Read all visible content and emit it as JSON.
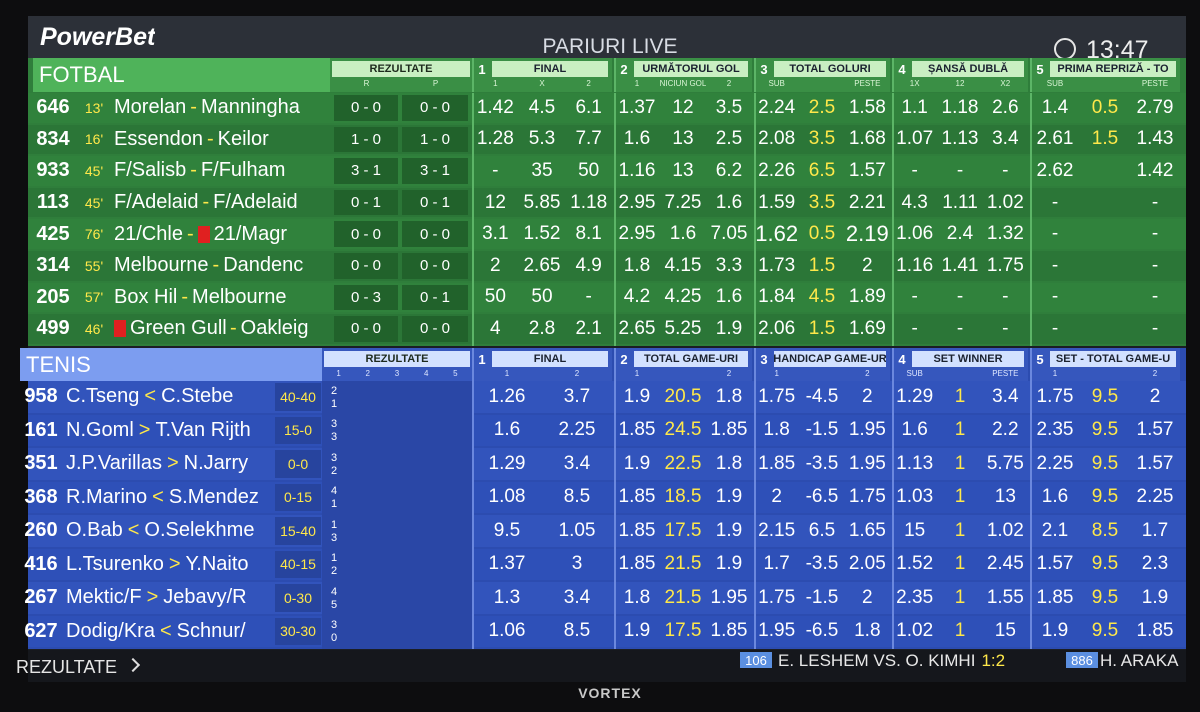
{
  "header": {
    "brand": "PowerBet",
    "title": "PARIURI LIVE",
    "time": "13:47"
  },
  "fotbal": {
    "label": "FOTBAL",
    "separator": "-",
    "results": {
      "label": "REZULTATE",
      "subs": [
        "R",
        "P"
      ]
    },
    "groups": [
      {
        "number": "1",
        "label": "FINAL",
        "subs": [
          "1",
          "X",
          "2"
        ]
      },
      {
        "number": "2",
        "label": "URMĂTORUL GOL",
        "subs": [
          "1",
          "NICIUN GOL",
          "2"
        ]
      },
      {
        "number": "3",
        "label": "TOTAL GOLURI",
        "subs": [
          "SUB",
          "PESTE"
        ]
      },
      {
        "number": "4",
        "label": "ȘANSĂ DUBLĂ",
        "subs": [
          "1X",
          "12",
          "X2"
        ]
      },
      {
        "number": "5",
        "label": "PRIMA REPRIZĂ - TO",
        "subs": [
          "SUB",
          "PESTE"
        ]
      }
    ],
    "rows": [
      {
        "id": "646",
        "minute": "13'",
        "home": "Morelan",
        "away": "Manningha",
        "r": "0 - 0",
        "p": "0 - 0",
        "odds": [
          [
            "1.42",
            "4.5",
            "6.1"
          ],
          [
            "1.37",
            "12",
            "3.5"
          ],
          [
            "2.24",
            "2.5",
            "1.58"
          ],
          [
            "1.1",
            "1.18",
            "2.6"
          ],
          [
            "1.4",
            "0.5",
            "2.79"
          ]
        ]
      },
      {
        "id": "834",
        "minute": "16'",
        "home": "Essendon",
        "away": "Keilor",
        "r": "1 - 0",
        "p": "1 - 0",
        "odds": [
          [
            "1.28",
            "5.3",
            "7.7"
          ],
          [
            "1.6",
            "13",
            "2.5"
          ],
          [
            "2.08",
            "3.5",
            "1.68"
          ],
          [
            "1.07",
            "1.13",
            "3.4"
          ],
          [
            "2.61",
            "1.5",
            "1.43"
          ]
        ]
      },
      {
        "id": "933",
        "minute": "45'",
        "home": "F/Salisb",
        "away": "F/Fulham",
        "r": "3 - 1",
        "p": "3 - 1",
        "odds": [
          [
            "-",
            "35",
            "50"
          ],
          [
            "1.16",
            "13",
            "6.2"
          ],
          [
            "2.26",
            "6.5",
            "1.57"
          ],
          [
            "-",
            "-",
            "-"
          ],
          [
            "2.62",
            null,
            "1.42"
          ]
        ]
      },
      {
        "id": "113",
        "minute": "45'",
        "home": "F/Adelaid",
        "away": "F/Adelaid",
        "r": "0 - 1",
        "p": "0 - 1",
        "odds": [
          [
            "12",
            "5.85",
            "1.18"
          ],
          [
            "2.95",
            "7.25",
            "1.6"
          ],
          [
            "1.59",
            "3.5",
            "2.21"
          ],
          [
            "4.3",
            "1.11",
            "1.02"
          ],
          [
            "-",
            null,
            "-"
          ]
        ]
      },
      {
        "id": "425",
        "minute": "76'",
        "home": "21/Chle",
        "away": "21/Magr",
        "red_card": "away",
        "r": "0 - 0",
        "p": "0 - 0",
        "odds": [
          [
            "3.1",
            "1.52",
            "8.1"
          ],
          [
            "2.95",
            "1.6",
            "7.05"
          ],
          [
            "1.62",
            "0.5",
            "2.19"
          ],
          [
            "1.06",
            "2.4",
            "1.32"
          ],
          [
            "-",
            null,
            "-"
          ]
        ]
      },
      {
        "id": "314",
        "minute": "55'",
        "home": "Melbourne",
        "away": "Dandenc",
        "r": "0 - 0",
        "p": "0 - 0",
        "odds": [
          [
            "2",
            "2.65",
            "4.9"
          ],
          [
            "1.8",
            "4.15",
            "3.3"
          ],
          [
            "1.73",
            "1.5",
            "2"
          ],
          [
            "1.16",
            "1.41",
            "1.75"
          ],
          [
            "-",
            null,
            "-"
          ]
        ]
      },
      {
        "id": "205",
        "minute": "57'",
        "home": "Box Hil",
        "away": "Melbourne",
        "r": "0 - 3",
        "p": "0 - 1",
        "odds": [
          [
            "50",
            "50",
            "-"
          ],
          [
            "4.2",
            "4.25",
            "1.6"
          ],
          [
            "1.84",
            "4.5",
            "1.89"
          ],
          [
            "-",
            "-",
            "-"
          ],
          [
            "-",
            null,
            "-"
          ]
        ]
      },
      {
        "id": "499",
        "minute": "46'",
        "home": "Green Gull",
        "away": "Oakleig",
        "red_card": "home",
        "r": "0 - 0",
        "p": "0 - 0",
        "odds": [
          [
            "4",
            "2.8",
            "2.1"
          ],
          [
            "2.65",
            "5.25",
            "1.9"
          ],
          [
            "2.06",
            "1.5",
            "1.69"
          ],
          [
            "-",
            "-",
            "-"
          ],
          [
            "-",
            null,
            "-"
          ]
        ]
      }
    ]
  },
  "tenis": {
    "label": "TENIS",
    "results": {
      "label": "REZULTATE",
      "subs": [
        "1",
        "2",
        "3",
        "4",
        "5"
      ]
    },
    "groups": [
      {
        "number": "1",
        "label": "FINAL",
        "subs": [
          "1",
          "2"
        ]
      },
      {
        "number": "2",
        "label": "TOTAL GAME-URI",
        "subs": [
          "1",
          "2"
        ]
      },
      {
        "number": "3",
        "label": "HANDICAP GAME-UR",
        "subs": [
          "1",
          "2"
        ]
      },
      {
        "number": "4",
        "label": "SET WINNER",
        "subs": [
          "SUB",
          "PESTE"
        ]
      },
      {
        "number": "5",
        "label": "SET - TOTAL GAME-U",
        "subs": [
          "1",
          "2"
        ]
      }
    ],
    "rows": [
      {
        "id": "958",
        "p1": "C.Tseng",
        "dir": "<",
        "p2": "C.Stebe",
        "game": "40-40",
        "sets": [
          "2",
          "1"
        ],
        "odds": [
          [
            "1.26",
            "3.7"
          ],
          [
            "1.9",
            "20.5",
            "1.8"
          ],
          [
            "1.75",
            "-4.5",
            "2"
          ],
          [
            "1.29",
            "1",
            "3.4"
          ],
          [
            "1.75",
            "9.5",
            "2"
          ]
        ]
      },
      {
        "id": "161",
        "p1": "N.Goml",
        "dir": ">",
        "p2": "T.Van Rijth",
        "game": "15-0",
        "sets": [
          "3",
          "3"
        ],
        "odds": [
          [
            "1.6",
            "2.25"
          ],
          [
            "1.85",
            "24.5",
            "1.85"
          ],
          [
            "1.8",
            "-1.5",
            "1.95"
          ],
          [
            "1.6",
            "1",
            "2.2"
          ],
          [
            "2.35",
            "9.5",
            "1.57"
          ]
        ]
      },
      {
        "id": "351",
        "p1": "J.P.Varillas",
        "dir": ">",
        "p2": "N.Jarry",
        "game": "0-0",
        "sets": [
          "3",
          "2"
        ],
        "odds": [
          [
            "1.29",
            "3.4"
          ],
          [
            "1.9",
            "22.5",
            "1.8"
          ],
          [
            "1.85",
            "-3.5",
            "1.95"
          ],
          [
            "1.13",
            "1",
            "5.75"
          ],
          [
            "2.25",
            "9.5",
            "1.57"
          ]
        ]
      },
      {
        "id": "368",
        "p1": "R.Marino",
        "dir": "<",
        "p2": "S.Mendez",
        "game": "0-15",
        "sets": [
          "4",
          "1"
        ],
        "odds": [
          [
            "1.08",
            "8.5"
          ],
          [
            "1.85",
            "18.5",
            "1.9"
          ],
          [
            "2",
            "-6.5",
            "1.75"
          ],
          [
            "1.03",
            "1",
            "13"
          ],
          [
            "1.6",
            "9.5",
            "2.25"
          ]
        ]
      },
      {
        "id": "260",
        "p1": "O.Bab",
        "dir": "<",
        "p2": "O.Selekhme",
        "game": "15-40",
        "sets": [
          "1",
          "3"
        ],
        "odds": [
          [
            "9.5",
            "1.05"
          ],
          [
            "1.85",
            "17.5",
            "1.9"
          ],
          [
            "2.15",
            "6.5",
            "1.65"
          ],
          [
            "15",
            "1",
            "1.02"
          ],
          [
            "2.1",
            "8.5",
            "1.7"
          ]
        ]
      },
      {
        "id": "416",
        "p1": "L.Tsurenko",
        "dir": ">",
        "p2": "Y.Naito",
        "game": "40-15",
        "sets": [
          "1",
          "2"
        ],
        "odds": [
          [
            "1.37",
            "3"
          ],
          [
            "1.85",
            "21.5",
            "1.9"
          ],
          [
            "1.7",
            "-3.5",
            "2.05"
          ],
          [
            "1.52",
            "1",
            "2.45"
          ],
          [
            "1.57",
            "9.5",
            "2.3"
          ]
        ]
      },
      {
        "id": "267",
        "p1": "Mektic/F",
        "dir": ">",
        "p2": "Jebavy/R",
        "game": "0-30",
        "sets": [
          "4",
          "5"
        ],
        "odds": [
          [
            "1.3",
            "3.4"
          ],
          [
            "1.8",
            "21.5",
            "1.95"
          ],
          [
            "1.75",
            "-1.5",
            "2"
          ],
          [
            "2.35",
            "1",
            "1.55"
          ],
          [
            "1.85",
            "9.5",
            "1.9"
          ]
        ]
      },
      {
        "id": "627",
        "p1": "Dodig/Kra",
        "dir": "<",
        "p2": "Schnur/",
        "game": "30-30",
        "sets": [
          "3",
          "0"
        ],
        "odds": [
          [
            "1.06",
            "8.5"
          ],
          [
            "1.9",
            "17.5",
            "1.85"
          ],
          [
            "1.95",
            "-6.5",
            "1.8"
          ],
          [
            "1.02",
            "1",
            "15"
          ],
          [
            "1.9",
            "9.5",
            "1.85"
          ]
        ]
      }
    ]
  },
  "footer": {
    "results_link": "REZULTATE",
    "ticker": [
      {
        "id": "106",
        "text": "E. LESHEM VS. O. KIMHI",
        "score": "1:2"
      },
      {
        "id": "886",
        "text": "H. ARAKA"
      }
    ]
  },
  "bezel": {
    "brand": "VORTEX"
  }
}
